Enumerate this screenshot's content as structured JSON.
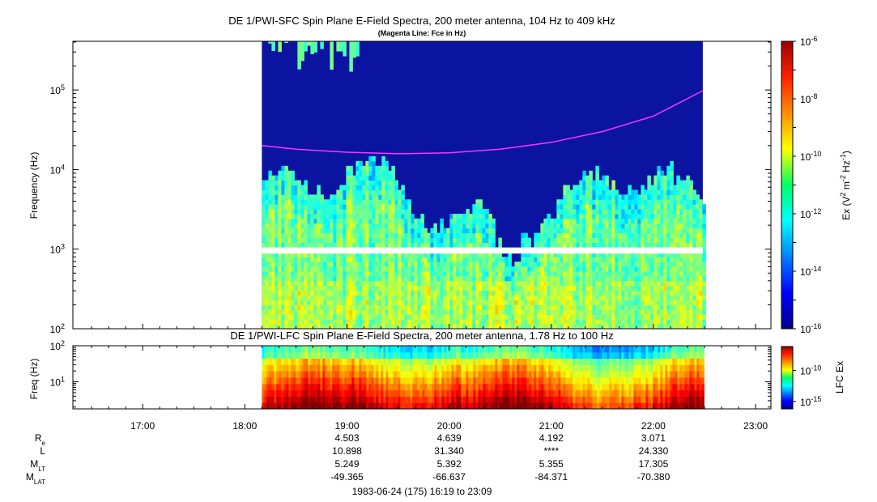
{
  "chart_data": [
    {
      "type": "heatmap",
      "title": "DE 1/PWI-SFC  Spin Plane E-Field Spectra, 200 meter antenna, 104 Hz to 409 kHz",
      "subtitle": "(Magenta Line: Fce in Hz)",
      "ylabel": "Frequency (Hz)",
      "yscale": "log",
      "ylim": [
        100,
        409000
      ],
      "yticks": [
        {
          "base": "10",
          "exp": "2",
          "value": 100
        },
        {
          "base": "10",
          "exp": "3",
          "value": 1000
        },
        {
          "base": "10",
          "exp": "4",
          "value": 10000
        },
        {
          "base": "10",
          "exp": "5",
          "value": 100000
        }
      ],
      "xlim": [
        "16:19",
        "23:09"
      ],
      "data_range": [
        "18:10",
        "22:29"
      ],
      "gap_band_hz": [
        880,
        1050
      ],
      "colorbar": {
        "label": "Ex (V² m⁻² Hz⁻¹)",
        "label_parts": {
          "a": "Ex (V",
          "b": "2",
          "c": " m",
          "d": "-2",
          "e": " Hz",
          "f": "-1",
          "g": ")"
        },
        "scale": "log",
        "range": [
          1e-16,
          1e-06
        ],
        "ticks": [
          {
            "base": "10",
            "exp": "-6",
            "value": -6
          },
          {
            "base": "10",
            "exp": "-8",
            "value": -8
          },
          {
            "base": "10",
            "exp": "-10",
            "value": -10
          },
          {
            "base": "10",
            "exp": "-12",
            "value": -12
          },
          {
            "base": "10",
            "exp": "-14",
            "value": -14
          },
          {
            "base": "10",
            "exp": "-16",
            "value": -16
          }
        ]
      },
      "fce_line": {
        "color": "#ff33ff",
        "time": [
          "18:10",
          "18:30",
          "19:00",
          "19:30",
          "20:00",
          "20:30",
          "21:00",
          "21:30",
          "22:00",
          "22:29"
        ],
        "freq_hz": [
          20000,
          18000,
          16500,
          15800,
          16200,
          18000,
          22000,
          30000,
          47000,
          98000
        ]
      }
    },
    {
      "type": "heatmap",
      "title": "DE 1/PWI-LFC  Spin Plane E-Field Spectra, 200 meter antenna, 1.78 Hz to 100 Hz",
      "ylabel": "Freq (Hz)",
      "yscale": "log",
      "ylim": [
        1.78,
        100
      ],
      "yticks": [
        {
          "base": "10",
          "exp": "1",
          "value": 10
        },
        {
          "base": "10",
          "exp": "2",
          "value": 100
        }
      ],
      "xlim": [
        "16:19",
        "23:09"
      ],
      "data_range": [
        "18:10",
        "22:29"
      ],
      "colorbar": {
        "label": "LFC Ex",
        "scale": "log",
        "ticks": [
          {
            "base": "10",
            "exp": "-10",
            "value": -10
          },
          {
            "base": "10",
            "exp": "-15",
            "value": -15
          }
        ]
      }
    }
  ],
  "time_axis": {
    "ticks": [
      {
        "label": "17:00",
        "minutes": 1020
      },
      {
        "label": "18:00",
        "minutes": 1080
      },
      {
        "label": "19:00",
        "minutes": 1140
      },
      {
        "label": "20:00",
        "minutes": 1200
      },
      {
        "label": "21:00",
        "minutes": 1260
      },
      {
        "label": "22:00",
        "minutes": 1320
      },
      {
        "label": "23:00",
        "minutes": 1380
      }
    ],
    "start_minutes": 979,
    "end_minutes": 1389
  },
  "ephemeris": {
    "rows": [
      {
        "main": "R",
        "sub": "e",
        "values": [
          "",
          "",
          "4.503",
          "4.639",
          "4.192",
          "3.071",
          ""
        ]
      },
      {
        "main": "L",
        "sub": "",
        "values": [
          "",
          "",
          "10.898",
          "31.340",
          "****",
          "24.330",
          ""
        ]
      },
      {
        "main": "M",
        "sub": "LT",
        "values": [
          "",
          "",
          "5.249",
          "5.392",
          "5.355",
          "17.305",
          ""
        ]
      },
      {
        "main": "M",
        "sub": "LAT",
        "values": [
          "",
          "",
          "-49.365",
          "-66.637",
          "-84.371",
          "-70.380",
          ""
        ]
      }
    ]
  },
  "footer": "1983-06-24 (175) 16:19 to 23:09",
  "colors": {
    "background": "#0a14a0",
    "fce": "#ff33ff"
  }
}
